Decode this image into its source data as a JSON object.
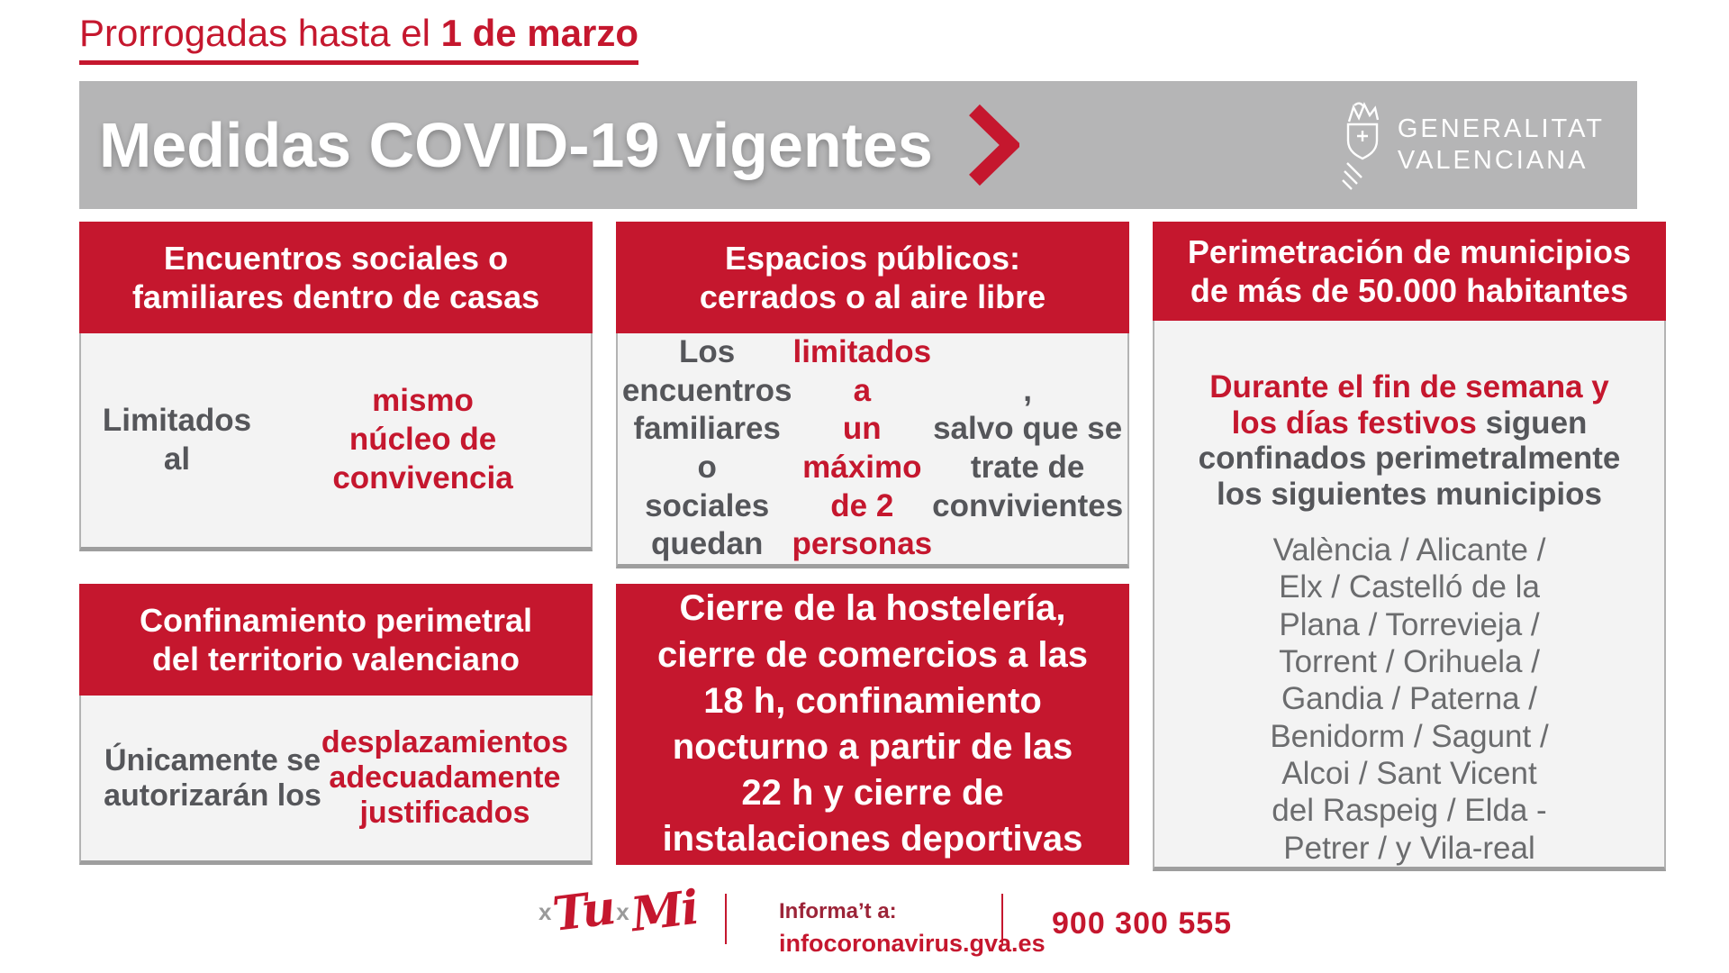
{
  "colors": {
    "accent_red": "#c5172e",
    "banner_gray": "#b5b5b6",
    "card_bg": "#f3f3f3",
    "card_border": "#b3b3b3",
    "card_border_bottom": "#9e9e9e",
    "text_dark": "#55565a",
    "text_list": "#6b6c6e",
    "logo_x_gray": "#9a9a9a",
    "white": "#ffffff"
  },
  "header": {
    "pretitle_segments": [
      {
        "t": "Prorrogadas hasta el ",
        "c": "plain"
      },
      {
        "t": "1 de marzo",
        "c": "bold"
      }
    ],
    "banner_title": "Medidas COVID-19 vigentes",
    "logo_line1": "GENERALITAT",
    "logo_line2": "VALENCIANA"
  },
  "cards": {
    "encuentros": {
      "header": "Encuentros sociales o\nfamiliares dentro de casas",
      "body_segments": [
        {
          "t": "Limitados al ",
          "c": "dark"
        },
        {
          "t": "mismo\nnúcleo de convivencia",
          "c": "red"
        }
      ]
    },
    "espacios": {
      "header": "Espacios públicos:\ncerrados o al aire libre",
      "body_segments": [
        {
          "t": "Los encuentros familiares o\nsociales quedan ",
          "c": "dark"
        },
        {
          "t": "limitados a\nun máximo de 2 personas",
          "c": "red"
        },
        {
          "t": ",\nsalvo que se trate de\nconvivientes",
          "c": "dark"
        }
      ]
    },
    "confinamiento": {
      "header": "Confinamiento perimetral\ndel territorio valenciano",
      "body_segments": [
        {
          "t": "Únicamente se\nautorizarán los\n",
          "c": "dark"
        },
        {
          "t": "desplazamientos\nadecuadamente\njustificados",
          "c": "red"
        }
      ]
    },
    "cierre": {
      "body": "Cierre de la hostelería,\ncierre de comercios a las\n18 h, confinamiento\nnocturno a partir de las\n22 h y cierre de\ninstalaciones deportivas"
    },
    "perimetracion": {
      "header": "Perimetración de municipios\nde más de 50.000 habitantes",
      "intro_segments": [
        {
          "t": "Durante el fin de semana y\nlos días festivos",
          "c": "red"
        },
        {
          "t": " siguen\nconfinados perimetralmente\nlos siguientes municipios",
          "c": "dark"
        }
      ],
      "municipios": "València / Alicante /\nElx / Castelló de la\nPlana / Torrevieja /\nTorrent / Orihuela /\nGandia / Paterna /\nBenidorm / Sagunt /\nAlcoi / Sant Vicent\ndel Raspeig / Elda -\nPetrer / y Vila-real"
    }
  },
  "footer": {
    "logo": {
      "x1": "x",
      "tu": "Tu",
      "x2": "x",
      "mi": "Mi"
    },
    "info_label": "Informa’t a:",
    "info_url": "infocoronavirus.gva.es",
    "phone": "900 300 555"
  }
}
